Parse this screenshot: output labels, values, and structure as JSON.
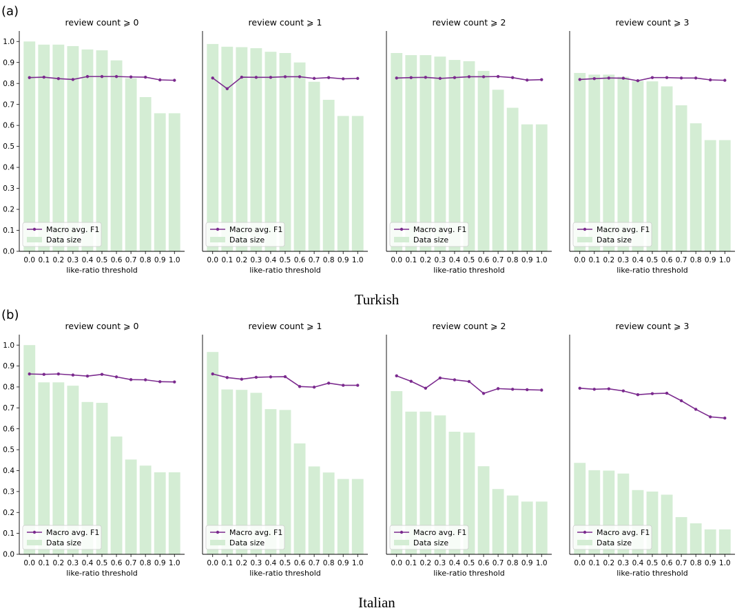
{
  "panels": [
    {
      "tag": "(a)",
      "caption": "Turkish",
      "charts": [
        {
          "title": "review count ⩾ 0",
          "type": "bar",
          "categories": [
            "0.0",
            "0.1",
            "0.2",
            "0.3",
            "0.4",
            "0.5",
            "0.6",
            "0.7",
            "0.8",
            "0.9",
            "1.0"
          ],
          "xlabel": "like-ratio threshold",
          "ylim": [
            0,
            1.05
          ],
          "series": [
            {
              "name": "Data size",
              "kind": "bar",
              "color": "#d4edd4",
              "values": [
                1.0,
                0.985,
                0.985,
                0.978,
                0.962,
                0.958,
                0.91,
                0.825,
                0.735,
                0.658,
                0.658
              ]
            },
            {
              "name": "Macro avg. F1",
              "kind": "line",
              "color": "#7b2a8e",
              "values": [
                0.828,
                0.83,
                0.823,
                0.819,
                0.833,
                0.833,
                0.833,
                0.831,
                0.83,
                0.817,
                0.815
              ]
            }
          ]
        },
        {
          "title": "review count ⩾ 1",
          "type": "bar",
          "categories": [
            "0.0",
            "0.1",
            "0.2",
            "0.3",
            "0.4",
            "0.5",
            "0.6",
            "0.7",
            "0.8",
            "0.9",
            "1.0"
          ],
          "xlabel": "like-ratio threshold",
          "ylim": [
            0,
            1.05
          ],
          "series": [
            {
              "name": "Data size",
              "kind": "bar",
              "color": "#d4edd4",
              "values": [
                0.988,
                0.975,
                0.973,
                0.968,
                0.951,
                0.945,
                0.9,
                0.808,
                0.722,
                0.645,
                0.645
              ]
            },
            {
              "name": "Macro avg. F1",
              "kind": "line",
              "color": "#7b2a8e",
              "values": [
                0.826,
                0.775,
                0.83,
                0.829,
                0.829,
                0.832,
                0.832,
                0.824,
                0.828,
                0.822,
                0.824
              ]
            }
          ]
        },
        {
          "title": "review count ⩾ 2",
          "type": "bar",
          "categories": [
            "0.0",
            "0.1",
            "0.2",
            "0.3",
            "0.4",
            "0.5",
            "0.6",
            "0.7",
            "0.8",
            "0.9",
            "1.0"
          ],
          "xlabel": "like-ratio threshold",
          "ylim": [
            0,
            1.05
          ],
          "series": [
            {
              "name": "Data size",
              "kind": "bar",
              "color": "#d4edd4",
              "values": [
                0.945,
                0.935,
                0.935,
                0.928,
                0.912,
                0.906,
                0.86,
                0.77,
                0.684,
                0.605,
                0.605
              ]
            },
            {
              "name": "Macro avg. F1",
              "kind": "line",
              "color": "#7b2a8e",
              "values": [
                0.826,
                0.828,
                0.829,
                0.824,
                0.828,
                0.832,
                0.832,
                0.833,
                0.828,
                0.816,
                0.818
              ]
            }
          ]
        },
        {
          "title": "review count ⩾ 3",
          "type": "bar",
          "categories": [
            "0.0",
            "0.1",
            "0.2",
            "0.3",
            "0.4",
            "0.5",
            "0.6",
            "0.7",
            "0.8",
            "0.9",
            "1.0"
          ],
          "xlabel": "like-ratio threshold",
          "ylim": [
            0,
            1.05
          ],
          "series": [
            {
              "name": "Data size",
              "kind": "bar",
              "color": "#d4edd4",
              "values": [
                0.85,
                0.842,
                0.842,
                0.832,
                0.812,
                0.81,
                0.786,
                0.696,
                0.61,
                0.53,
                0.53
              ]
            },
            {
              "name": "Macro avg. F1",
              "kind": "line",
              "color": "#7b2a8e",
              "values": [
                0.819,
                0.823,
                0.826,
                0.825,
                0.813,
                0.828,
                0.828,
                0.826,
                0.826,
                0.817,
                0.815
              ]
            }
          ]
        }
      ]
    },
    {
      "tag": "(b)",
      "caption": "Italian",
      "charts": [
        {
          "title": "review count ⩾ 0",
          "type": "bar",
          "categories": [
            "0.0",
            "0.1",
            "0.2",
            "0.3",
            "0.4",
            "0.5",
            "0.6",
            "0.7",
            "0.8",
            "0.9",
            "1.0"
          ],
          "xlabel": "like-ratio threshold",
          "ylim": [
            0,
            1.05
          ],
          "series": [
            {
              "name": "Data size",
              "kind": "bar",
              "color": "#d4edd4",
              "values": [
                1.0,
                0.822,
                0.822,
                0.806,
                0.728,
                0.724,
                0.563,
                0.453,
                0.424,
                0.392,
                0.392
              ]
            },
            {
              "name": "Macro avg. F1",
              "kind": "line",
              "color": "#7b2a8e",
              "values": [
                0.862,
                0.86,
                0.862,
                0.857,
                0.852,
                0.86,
                0.848,
                0.835,
                0.834,
                0.825,
                0.824
              ]
            }
          ]
        },
        {
          "title": "review count ⩾ 1",
          "type": "bar",
          "categories": [
            "0.0",
            "0.1",
            "0.2",
            "0.3",
            "0.4",
            "0.5",
            "0.6",
            "0.7",
            "0.8",
            "0.9",
            "1.0"
          ],
          "xlabel": "like-ratio threshold",
          "ylim": [
            0,
            1.05
          ],
          "series": [
            {
              "name": "Data size",
              "kind": "bar",
              "color": "#d4edd4",
              "values": [
                0.967,
                0.788,
                0.786,
                0.772,
                0.694,
                0.69,
                0.53,
                0.42,
                0.391,
                0.36,
                0.36
              ]
            },
            {
              "name": "Macro avg. F1",
              "kind": "line",
              "color": "#7b2a8e",
              "values": [
                0.862,
                0.845,
                0.837,
                0.846,
                0.848,
                0.849,
                0.802,
                0.799,
                0.818,
                0.808,
                0.808
              ]
            }
          ]
        },
        {
          "title": "review count ⩾ 2",
          "type": "bar",
          "categories": [
            "0.0",
            "0.1",
            "0.2",
            "0.3",
            "0.4",
            "0.5",
            "0.6",
            "0.7",
            "0.8",
            "0.9",
            "1.0"
          ],
          "xlabel": "like-ratio threshold",
          "ylim": [
            0,
            1.05
          ],
          "series": [
            {
              "name": "Data size",
              "kind": "bar",
              "color": "#d4edd4",
              "values": [
                0.78,
                0.682,
                0.682,
                0.664,
                0.586,
                0.582,
                0.421,
                0.312,
                0.281,
                0.252,
                0.252
              ]
            },
            {
              "name": "Macro avg. F1",
              "kind": "line",
              "color": "#7b2a8e",
              "values": [
                0.853,
                0.827,
                0.794,
                0.843,
                0.834,
                0.826,
                0.769,
                0.792,
                0.789,
                0.787,
                0.785
              ]
            }
          ]
        },
        {
          "title": "review count ⩾ 3",
          "type": "bar",
          "categories": [
            "0.0",
            "0.1",
            "0.2",
            "0.3",
            "0.4",
            "0.5",
            "0.6",
            "0.7",
            "0.8",
            "0.9",
            "1.0"
          ],
          "xlabel": "like-ratio threshold",
          "ylim": [
            0,
            1.05
          ],
          "series": [
            {
              "name": "Data size",
              "kind": "bar",
              "color": "#d4edd4",
              "values": [
                0.437,
                0.402,
                0.4,
                0.386,
                0.307,
                0.3,
                0.285,
                0.178,
                0.148,
                0.119,
                0.119
              ]
            },
            {
              "name": "Macro avg. F1",
              "kind": "line",
              "color": "#7b2a8e",
              "values": [
                0.794,
                0.789,
                0.791,
                0.781,
                0.763,
                0.768,
                0.77,
                0.734,
                0.693,
                0.657,
                0.651
              ]
            }
          ]
        }
      ]
    }
  ],
  "yticks": [
    "0.0",
    "0.1",
    "0.2",
    "0.3",
    "0.4",
    "0.5",
    "0.6",
    "0.7",
    "0.8",
    "0.9",
    "1.0"
  ],
  "legend": {
    "line_label": "Macro avg. F1",
    "bar_label": "Data size",
    "placement": "lower-left"
  }
}
